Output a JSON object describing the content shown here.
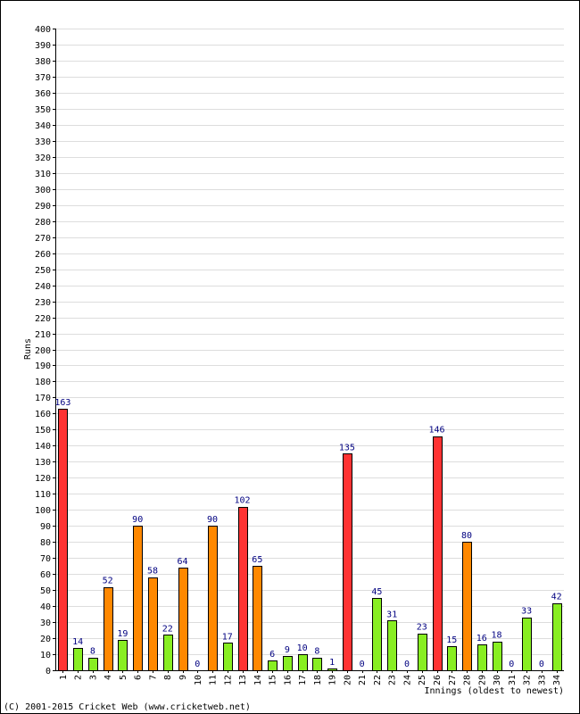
{
  "chart_data": {
    "type": "bar",
    "categories": [
      "1",
      "2",
      "3",
      "4",
      "5",
      "6",
      "7",
      "8",
      "9",
      "10",
      "11",
      "12",
      "13",
      "14",
      "15",
      "16",
      "17",
      "18",
      "19",
      "20",
      "21",
      "22",
      "23",
      "24",
      "25",
      "26",
      "27",
      "28",
      "29",
      "30",
      "31",
      "32",
      "33",
      "34"
    ],
    "values": [
      163,
      14,
      8,
      52,
      19,
      90,
      58,
      22,
      64,
      0,
      90,
      17,
      102,
      65,
      6,
      9,
      10,
      8,
      1,
      135,
      0,
      45,
      31,
      0,
      23,
      146,
      15,
      80,
      16,
      18,
      0,
      33,
      0,
      42
    ],
    "bar_colors": [
      "red",
      "green",
      "green",
      "orange",
      "green",
      "orange",
      "orange",
      "green",
      "orange",
      "none",
      "orange",
      "green",
      "red",
      "orange",
      "green",
      "green",
      "green",
      "green",
      "green",
      "red",
      "none",
      "green",
      "green",
      "none",
      "green",
      "red",
      "green",
      "orange",
      "green",
      "green",
      "none",
      "green",
      "none",
      "green"
    ],
    "xlabel": "Innings (oldest to newest)",
    "ylabel": "Runs",
    "ylim": [
      0,
      400
    ],
    "y_tick_step": 10,
    "grid": true,
    "colors": {
      "red": "#ff3333",
      "orange": "#ff8800",
      "green": "#88ee22",
      "bar_outline": "#000000",
      "grid": "#dddddd",
      "value_label": "#000080"
    }
  },
  "footer": {
    "copyright": "(C) 2001-2015 Cricket Web (www.cricketweb.net)"
  }
}
